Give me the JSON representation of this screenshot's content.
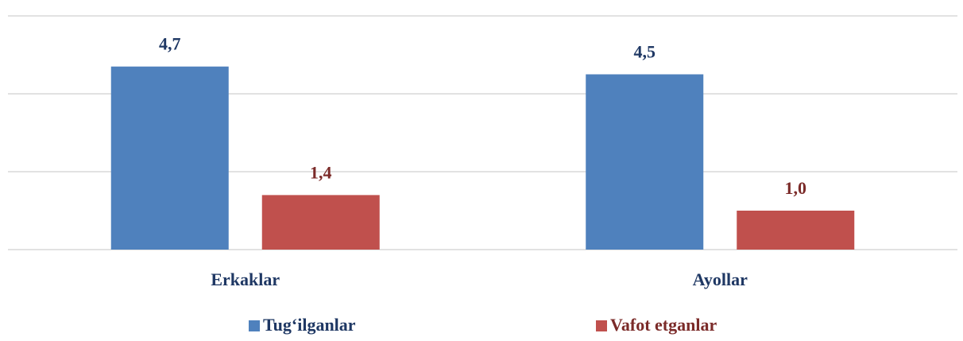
{
  "chart_data": {
    "type": "bar",
    "categories": [
      "Erkaklar",
      "Ayollar"
    ],
    "series": [
      {
        "name": "Tug‘ilganlar",
        "color": "#4f81bd",
        "label_color": "#1f3864",
        "values": [
          4.7,
          4.5
        ],
        "value_labels": [
          "4,7",
          "4,5"
        ]
      },
      {
        "name": "Vafot etganlar",
        "color": "#c0504d",
        "label_color": "#7b2b29",
        "values": [
          1.4,
          1.0
        ],
        "value_labels": [
          "1,4",
          "1,0"
        ]
      }
    ],
    "ylim": [
      0,
      6
    ],
    "yticks": [
      0,
      2,
      4,
      6
    ],
    "grid": true,
    "legend": "bottom"
  }
}
